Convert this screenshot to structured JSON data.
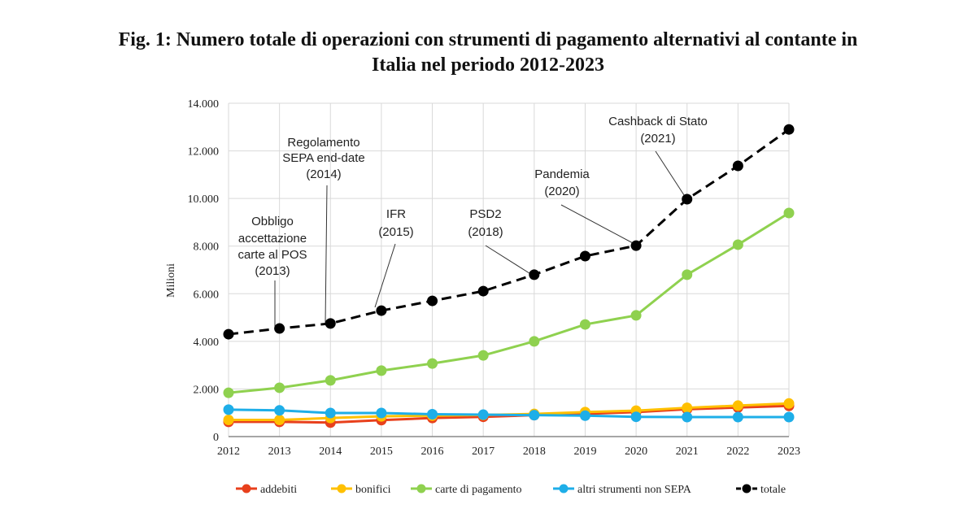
{
  "title_line1": "Fig. 1: Numero totale di operazioni con strumenti di pagamento alternativi al contante in",
  "title_line2": "Italia nel periodo 2012-2023",
  "chart_data": {
    "type": "line",
    "ylabel": "Milioni",
    "xlabel": "",
    "ylim": [
      0,
      14000
    ],
    "yticks": [
      "0",
      "2.000",
      "4.000",
      "6.000",
      "8.000",
      "10.000",
      "12.000",
      "14.000"
    ],
    "grid": true,
    "legend_position": "bottom",
    "x": [
      "2012",
      "2013",
      "2014",
      "2015",
      "2016",
      "2017",
      "2018",
      "2019",
      "2020",
      "2021",
      "2022",
      "2023"
    ],
    "series": [
      {
        "name": "addebiti",
        "color": "#e8401c",
        "dashed": false,
        "values": [
          620,
          620,
          590,
          690,
          780,
          830,
          900,
          950,
          1030,
          1150,
          1220,
          1290
        ]
      },
      {
        "name": "bonifici",
        "color": "#ffc000",
        "dashed": false,
        "values": [
          700,
          700,
          780,
          850,
          880,
          910,
          950,
          1030,
          1090,
          1210,
          1300,
          1390
        ]
      },
      {
        "name": "carte di pagamento",
        "color": "#8fd14f",
        "dashed": false,
        "values": [
          1840,
          2050,
          2360,
          2770,
          3070,
          3410,
          4000,
          4710,
          5090,
          6800,
          8060,
          9390
        ]
      },
      {
        "name": "altri strumenti non SEPA",
        "color": "#1eaee8",
        "dashed": false,
        "values": [
          1130,
          1100,
          990,
          990,
          940,
          920,
          900,
          880,
          830,
          820,
          820,
          820
        ]
      },
      {
        "name": "totale",
        "color": "#000000",
        "dashed": true,
        "values": [
          4300,
          4540,
          4750,
          5290,
          5700,
          6110,
          6800,
          7580,
          8020,
          9970,
          11370,
          12900
        ]
      }
    ],
    "annotations": [
      {
        "lines": [
          "Obbligo",
          "accettazione",
          "carte al POS",
          "(2013)"
        ],
        "x": "2013"
      },
      {
        "lines": [
          "Regolamento",
          "SEPA end-date",
          "(2014)"
        ],
        "x": "2014"
      },
      {
        "lines": [
          "IFR",
          "(2015)"
        ],
        "x": "2015"
      },
      {
        "lines": [
          "PSD2",
          "(2018)"
        ],
        "x": "2018"
      },
      {
        "lines": [
          "Pandemia",
          "(2020)"
        ],
        "x": "2020"
      },
      {
        "lines": [
          "Cashback di Stato",
          "(2021)"
        ],
        "x": "2021"
      }
    ]
  }
}
